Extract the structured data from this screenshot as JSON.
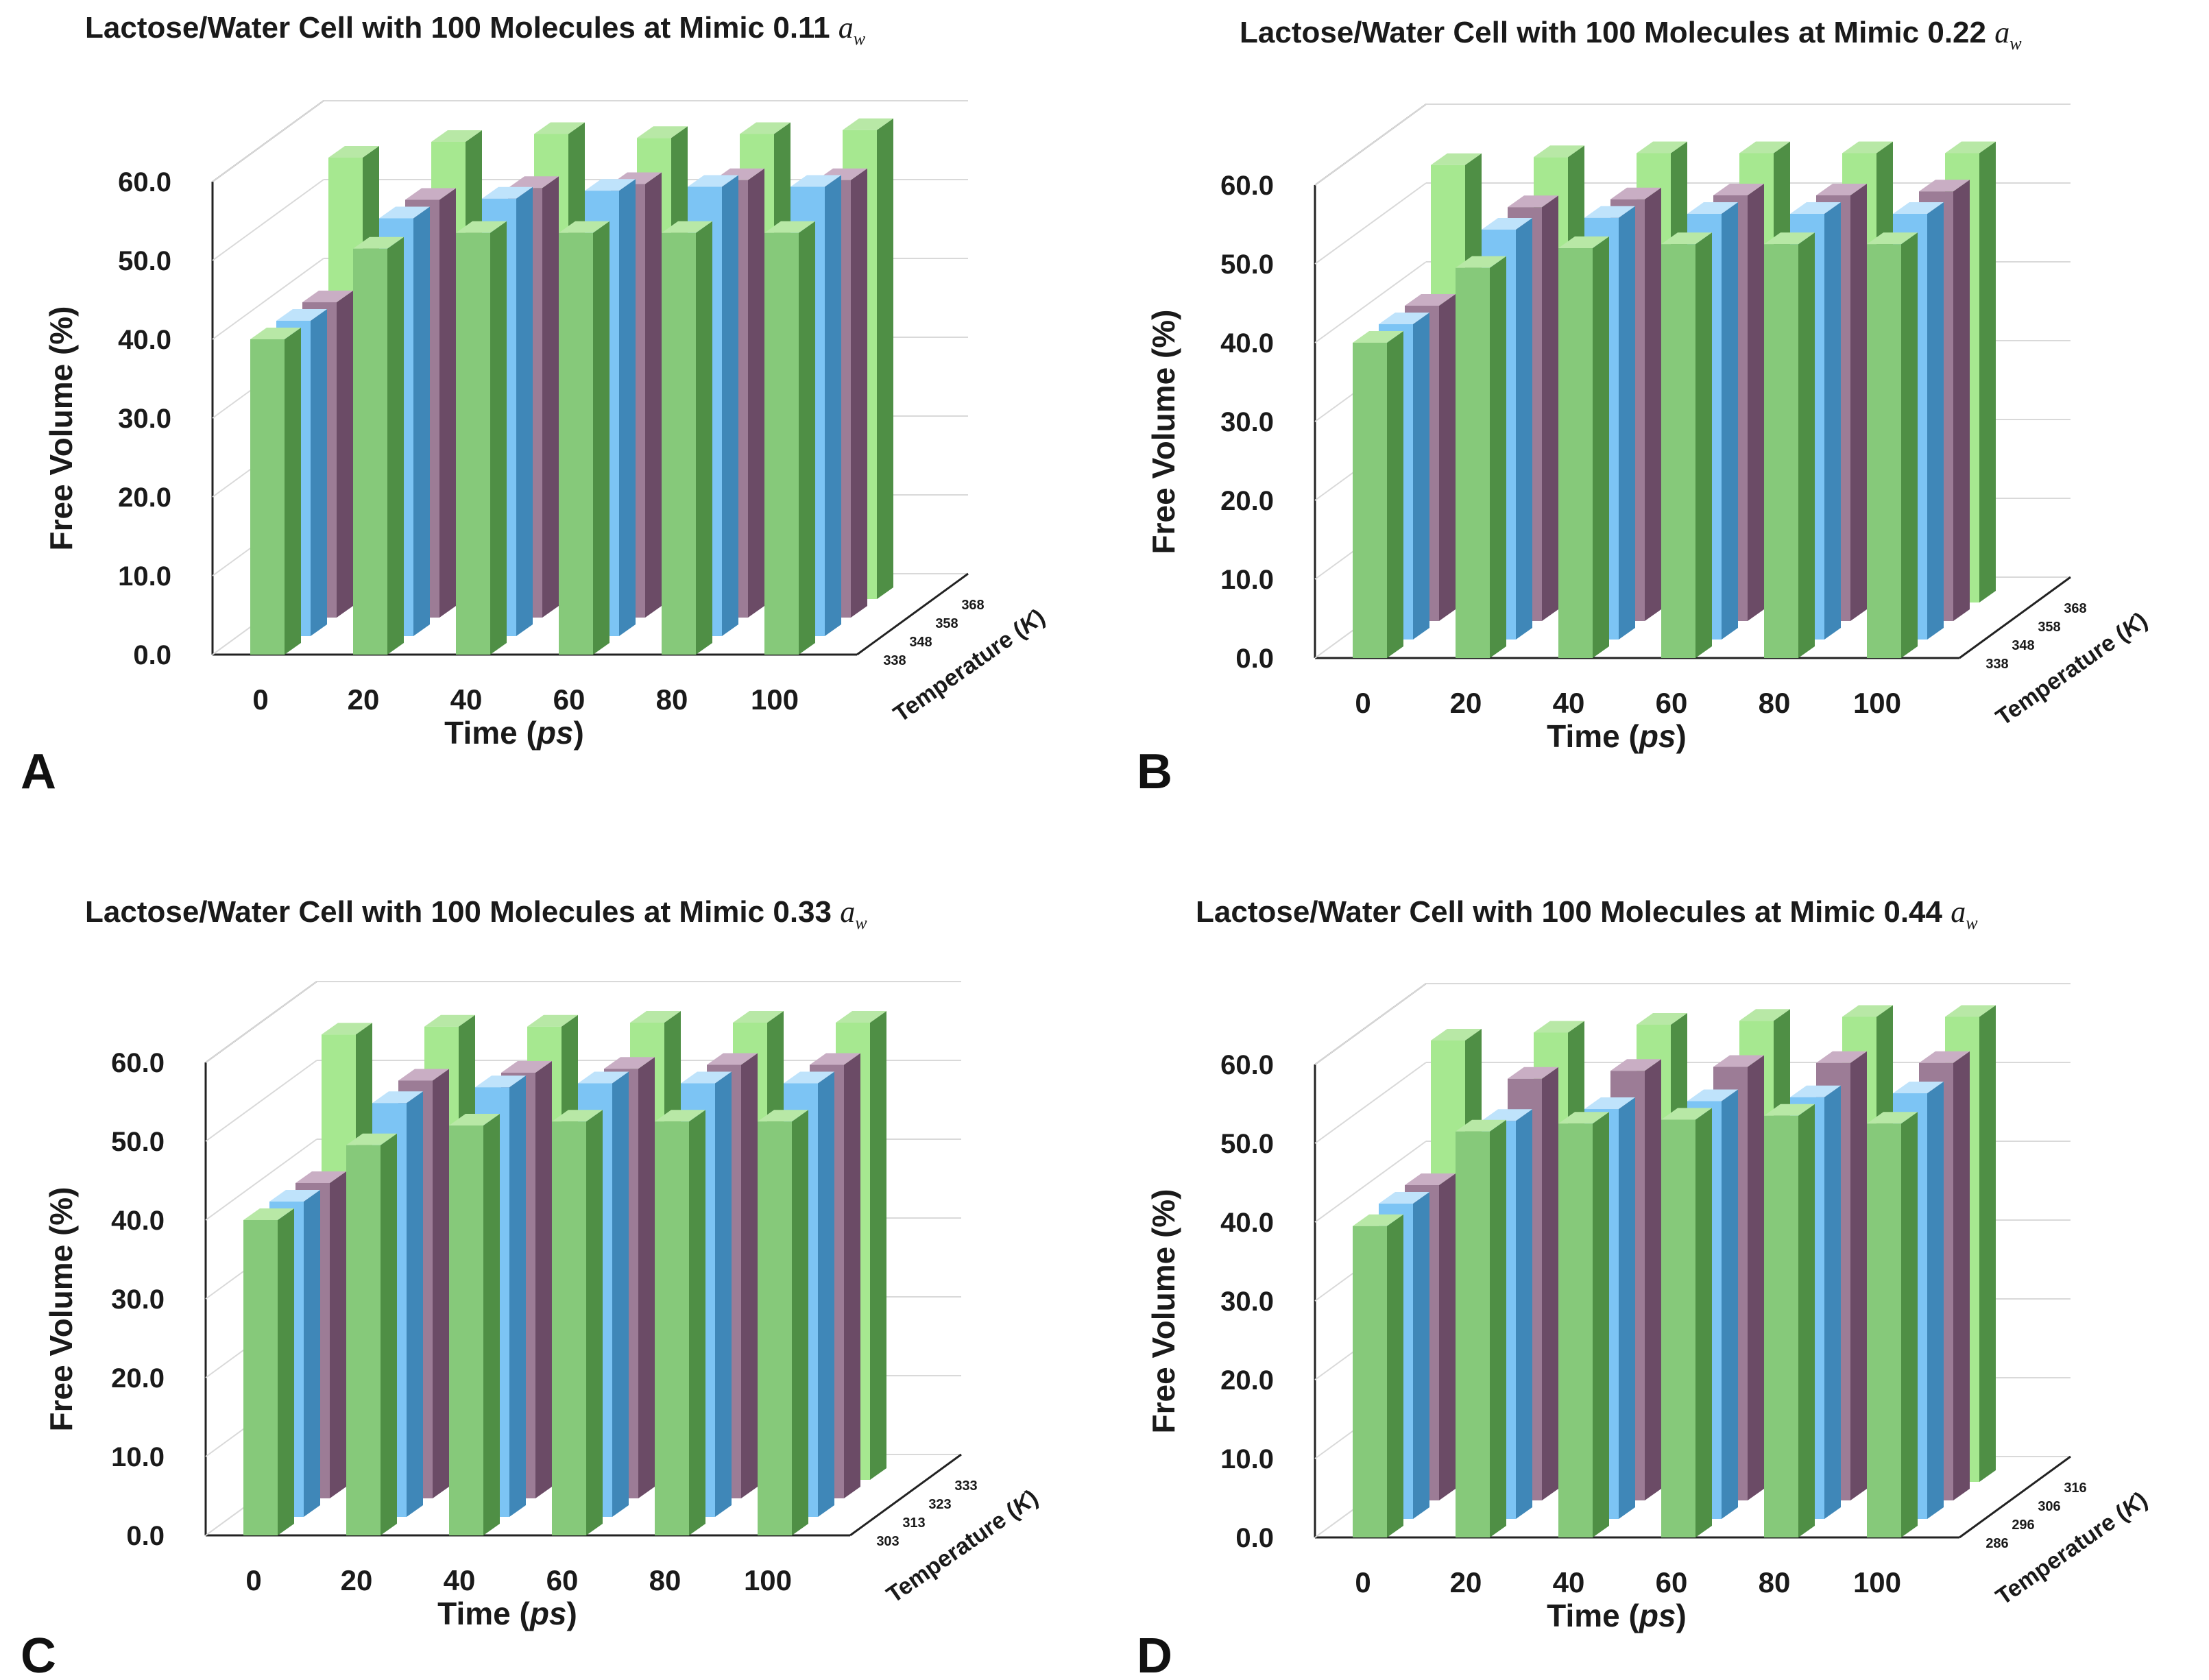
{
  "colors": {
    "green_front": "#86c97a",
    "green_side": "#4f8f45",
    "green_top": "#b8e8a6",
    "green_back_front": "#a6e890",
    "blue_front": "#7cc4f4",
    "blue_side": "#3f87b8",
    "blue_top": "#bfe3fb",
    "purple_front": "#9c7c96",
    "purple_side": "#6b4b66",
    "purple_top": "#c9aec4",
    "grid": "#d9d9d9",
    "axis": "#222222"
  },
  "chart_data": [
    {
      "panel": "A",
      "type": "bar",
      "variant": "3d-clustered",
      "title": "Lactose/Water Cell with 100 Molecules at Mimic 0.11",
      "title_suffix": "a",
      "title_suffix_sub": "w",
      "xlabel_prefix": "Time (",
      "xlabel_unit": "ps",
      "xlabel_suffix": ")",
      "ylabel": "Free Volume (%)",
      "zlabel_prefix": "Temperature (",
      "zlabel_unit": "K",
      "zlabel_suffix": ")",
      "categories": [
        "0",
        "20",
        "40",
        "60",
        "80",
        "100"
      ],
      "yticks": [
        "0.0",
        "10.0",
        "20.0",
        "30.0",
        "40.0",
        "50.0",
        "60.0"
      ],
      "ylim": [
        0,
        60
      ],
      "grid": true,
      "series": [
        {
          "name": "338",
          "color": "green",
          "values": [
            40.0,
            51.5,
            53.5,
            53.5,
            53.5,
            53.5
          ]
        },
        {
          "name": "348",
          "color": "blue",
          "values": [
            40.0,
            53.0,
            55.5,
            56.5,
            57.0,
            57.0
          ]
        },
        {
          "name": "358",
          "color": "purple",
          "values": [
            40.0,
            53.0,
            54.5,
            55.0,
            55.5,
            55.5
          ]
        },
        {
          "name": "368",
          "color": "green_back",
          "values": [
            56.0,
            58.0,
            59.0,
            58.5,
            59.0,
            59.5
          ]
        }
      ]
    },
    {
      "panel": "B",
      "type": "bar",
      "variant": "3d-clustered",
      "title": "Lactose/Water Cell with 100 Molecules at Mimic 0.22",
      "title_suffix": "a",
      "title_suffix_sub": "w",
      "xlabel_prefix": "Time (",
      "xlabel_unit": "ps",
      "xlabel_suffix": ")",
      "ylabel": "Free Volume (%)",
      "zlabel_prefix": "Temperature (",
      "zlabel_unit": "K",
      "zlabel_suffix": ")",
      "categories": [
        "0",
        "20",
        "40",
        "60",
        "80",
        "100"
      ],
      "yticks": [
        "0.0",
        "10.0",
        "20.0",
        "30.0",
        "40.0",
        "50.0",
        "60.0"
      ],
      "ylim": [
        0,
        60
      ],
      "grid": true,
      "series": [
        {
          "name": "338",
          "color": "green",
          "values": [
            40.0,
            49.5,
            52.0,
            52.5,
            52.5,
            52.5
          ]
        },
        {
          "name": "348",
          "color": "blue",
          "values": [
            40.0,
            52.0,
            53.5,
            54.0,
            54.0,
            54.0
          ]
        },
        {
          "name": "358",
          "color": "purple",
          "values": [
            40.0,
            52.5,
            53.5,
            54.0,
            54.0,
            54.5
          ]
        },
        {
          "name": "368",
          "color": "green_back",
          "values": [
            55.5,
            56.5,
            57.0,
            57.0,
            57.0,
            57.0
          ]
        }
      ]
    },
    {
      "panel": "C",
      "type": "bar",
      "variant": "3d-clustered",
      "title": "Lactose/Water Cell with 100 Molecules at Mimic 0.33",
      "title_suffix": "a",
      "title_suffix_sub": "w",
      "xlabel_prefix": "Time (",
      "xlabel_unit": "ps",
      "xlabel_suffix": ")",
      "ylabel": "Free Volume (%)",
      "zlabel_prefix": "Temperature (",
      "zlabel_unit": "K",
      "zlabel_suffix": ")",
      "categories": [
        "0",
        "20",
        "40",
        "60",
        "80",
        "100"
      ],
      "yticks": [
        "0.0",
        "10.0",
        "20.0",
        "30.0",
        "40.0",
        "50.0",
        "60.0"
      ],
      "ylim": [
        0,
        60
      ],
      "grid": true,
      "series": [
        {
          "name": "303",
          "color": "green",
          "values": [
            40.0,
            49.5,
            52.0,
            52.5,
            52.5,
            52.5
          ]
        },
        {
          "name": "313",
          "color": "blue",
          "values": [
            40.0,
            52.5,
            54.5,
            55.0,
            55.0,
            55.0
          ]
        },
        {
          "name": "323",
          "color": "purple",
          "values": [
            40.0,
            53.0,
            54.0,
            54.5,
            55.0,
            55.0
          ]
        },
        {
          "name": "333",
          "color": "green_back",
          "values": [
            56.5,
            57.5,
            57.5,
            58.0,
            58.0,
            58.0
          ]
        }
      ]
    },
    {
      "panel": "D",
      "type": "bar",
      "variant": "3d-clustered",
      "title": "Lactose/Water Cell with 100 Molecules at Mimic 0.44",
      "title_suffix": "a",
      "title_suffix_sub": "w",
      "xlabel_prefix": "Time (",
      "xlabel_unit": "ps",
      "xlabel_suffix": ")",
      "ylabel": "Free Volume (%)",
      "zlabel_prefix": "Temperature (",
      "zlabel_unit": "K",
      "zlabel_suffix": ")",
      "categories": [
        "0",
        "20",
        "40",
        "60",
        "80",
        "100"
      ],
      "yticks": [
        "0.0",
        "10.0",
        "20.0",
        "30.0",
        "40.0",
        "50.0",
        "60.0"
      ],
      "ylim": [
        0,
        60
      ],
      "grid": true,
      "series": [
        {
          "name": "286",
          "color": "green",
          "values": [
            39.5,
            51.5,
            52.5,
            53.0,
            53.5,
            52.5
          ]
        },
        {
          "name": "296",
          "color": "blue",
          "values": [
            40.0,
            50.5,
            52.0,
            53.0,
            53.5,
            54.0
          ]
        },
        {
          "name": "306",
          "color": "purple",
          "values": [
            40.0,
            53.5,
            54.5,
            55.0,
            55.5,
            55.5
          ]
        },
        {
          "name": "316",
          "color": "green_back",
          "values": [
            56.0,
            57.0,
            58.0,
            58.5,
            59.0,
            59.0
          ]
        }
      ]
    }
  ]
}
